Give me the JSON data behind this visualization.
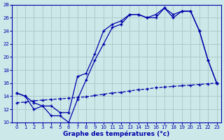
{
  "title": "Graphe des températures (°c)",
  "bg_color": "#cce8e8",
  "grid_color": "#aacccc",
  "line_color": "#0000aa",
  "xlim": [
    -0.5,
    23.5
  ],
  "ylim": [
    10,
    28
  ],
  "xticks": [
    0,
    1,
    2,
    3,
    4,
    5,
    6,
    7,
    8,
    9,
    10,
    11,
    12,
    13,
    14,
    15,
    16,
    17,
    18,
    19,
    20,
    21,
    22,
    23
  ],
  "yticks": [
    10,
    12,
    14,
    16,
    18,
    20,
    22,
    24,
    26,
    28
  ],
  "series1_x": [
    0,
    1,
    2,
    3,
    4,
    5,
    6,
    7,
    8,
    9,
    10,
    11,
    12,
    13,
    14,
    15,
    16,
    17,
    18,
    19,
    20,
    21,
    22,
    23
  ],
  "series1_y": [
    14.5,
    14.0,
    12.0,
    12.5,
    11.0,
    11.0,
    10.0,
    13.5,
    16.5,
    19.5,
    22.0,
    24.5,
    25.0,
    26.5,
    26.5,
    26.0,
    26.0,
    27.5,
    26.0,
    27.0,
    27.0,
    24.0,
    19.5,
    16.0
  ],
  "series2_x": [
    0,
    1,
    2,
    3,
    4,
    5,
    6,
    7,
    8,
    9,
    10,
    11,
    12,
    13,
    14,
    15,
    16,
    17,
    18,
    19,
    20,
    21,
    22,
    23
  ],
  "series2_y": [
    14.5,
    14.0,
    13.0,
    12.5,
    12.5,
    11.5,
    11.5,
    17.0,
    17.5,
    20.5,
    24.0,
    25.0,
    25.5,
    26.5,
    26.5,
    26.0,
    26.5,
    27.5,
    26.5,
    27.0,
    27.0,
    24.0,
    19.5,
    16.0
  ],
  "series3_x": [
    0,
    1,
    2,
    3,
    4,
    5,
    6,
    7,
    8,
    9,
    10,
    11,
    12,
    13,
    14,
    15,
    16,
    17,
    18,
    19,
    20,
    21,
    22,
    23
  ],
  "series3_y": [
    13.0,
    13.1,
    13.3,
    13.4,
    13.5,
    13.6,
    13.7,
    13.8,
    13.9,
    14.1,
    14.3,
    14.5,
    14.6,
    14.8,
    15.0,
    15.1,
    15.3,
    15.4,
    15.5,
    15.6,
    15.7,
    15.8,
    15.9,
    16.0
  ],
  "xlabel_fontsize": 6.5,
  "tick_fontsize": 5.0
}
